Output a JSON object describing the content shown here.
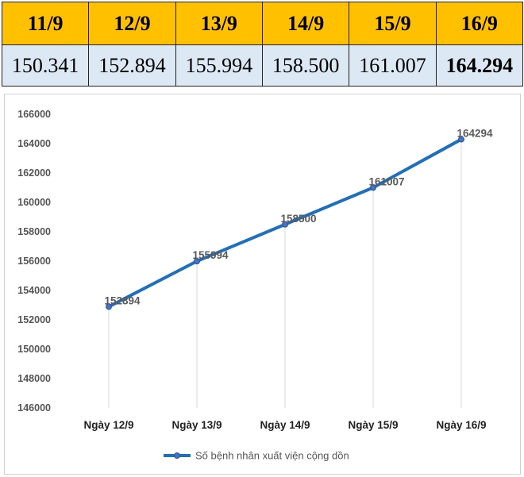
{
  "table": {
    "headers": [
      "11/9",
      "12/9",
      "13/9",
      "14/9",
      "15/9",
      "16/9"
    ],
    "values": [
      "150.341",
      "152.894",
      "155.994",
      "158.500",
      "161.007",
      "164.294"
    ]
  },
  "chart_data": {
    "type": "line",
    "categories": [
      "Ngày 12/9",
      "Ngày 13/9",
      "Ngày 14/9",
      "Ngày 15/9",
      "Ngày 16/9"
    ],
    "series": [
      {
        "name": "Số bệnh nhân xuất viện cộng dồn",
        "values": [
          152894,
          155994,
          158500,
          161007,
          164294
        ]
      }
    ],
    "data_labels": [
      "152894",
      "155994",
      "158500",
      "161007",
      "164294"
    ],
    "yticks": [
      "146000",
      "148000",
      "150000",
      "152000",
      "154000",
      "156000",
      "158000",
      "160000",
      "162000",
      "164000",
      "166000"
    ],
    "ylim": [
      146000,
      166000
    ],
    "grid": "vertical drop lines",
    "legend_position": "bottom",
    "line_color": "#1f6fbf"
  }
}
